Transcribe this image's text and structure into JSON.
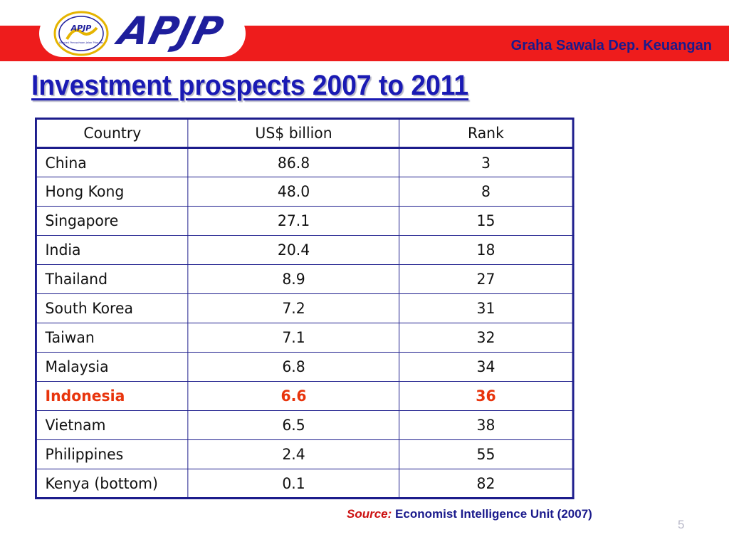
{
  "header": {
    "brand": "APJP",
    "logo_text": "APJP",
    "logo_subtext": "Asosiasi Perusahaan Jalan Prioritas",
    "right_text": "Graha Sawala Dep. Keuangan"
  },
  "page_title": "Investment prospects 2007 to 2011",
  "table": {
    "headers": [
      "Country",
      "US$ billion",
      "Rank"
    ],
    "rows": [
      [
        "China",
        "86.8",
        "3"
      ],
      [
        "Hong Kong",
        "48.0",
        "8"
      ],
      [
        "Singapore",
        "27.1",
        "15"
      ],
      [
        "India",
        "20.4",
        "18"
      ],
      [
        "Thailand",
        "8.9",
        "27"
      ],
      [
        "South Korea",
        "7.2",
        "31"
      ],
      [
        "Taiwan",
        "7.1",
        "32"
      ],
      [
        "Malaysia",
        "6.8",
        "34"
      ],
      [
        "Indonesia",
        "6.6",
        "36"
      ],
      [
        "Vietnam",
        "6.5",
        "38"
      ],
      [
        "Philippines",
        "2.4",
        "55"
      ],
      [
        "Kenya (bottom)",
        "0.1",
        "82"
      ]
    ],
    "highlight_row_index": 8
  },
  "footer": {
    "source_label": "Source:",
    "source_text": "Economist Intelligence Unit (2007)",
    "page_number": "5"
  },
  "colors": {
    "header_red": "#ee1c1c",
    "brand_blue": "#1e1e9c",
    "title_blue": "#1a1ab4",
    "highlight_orange": "#e8340c"
  }
}
